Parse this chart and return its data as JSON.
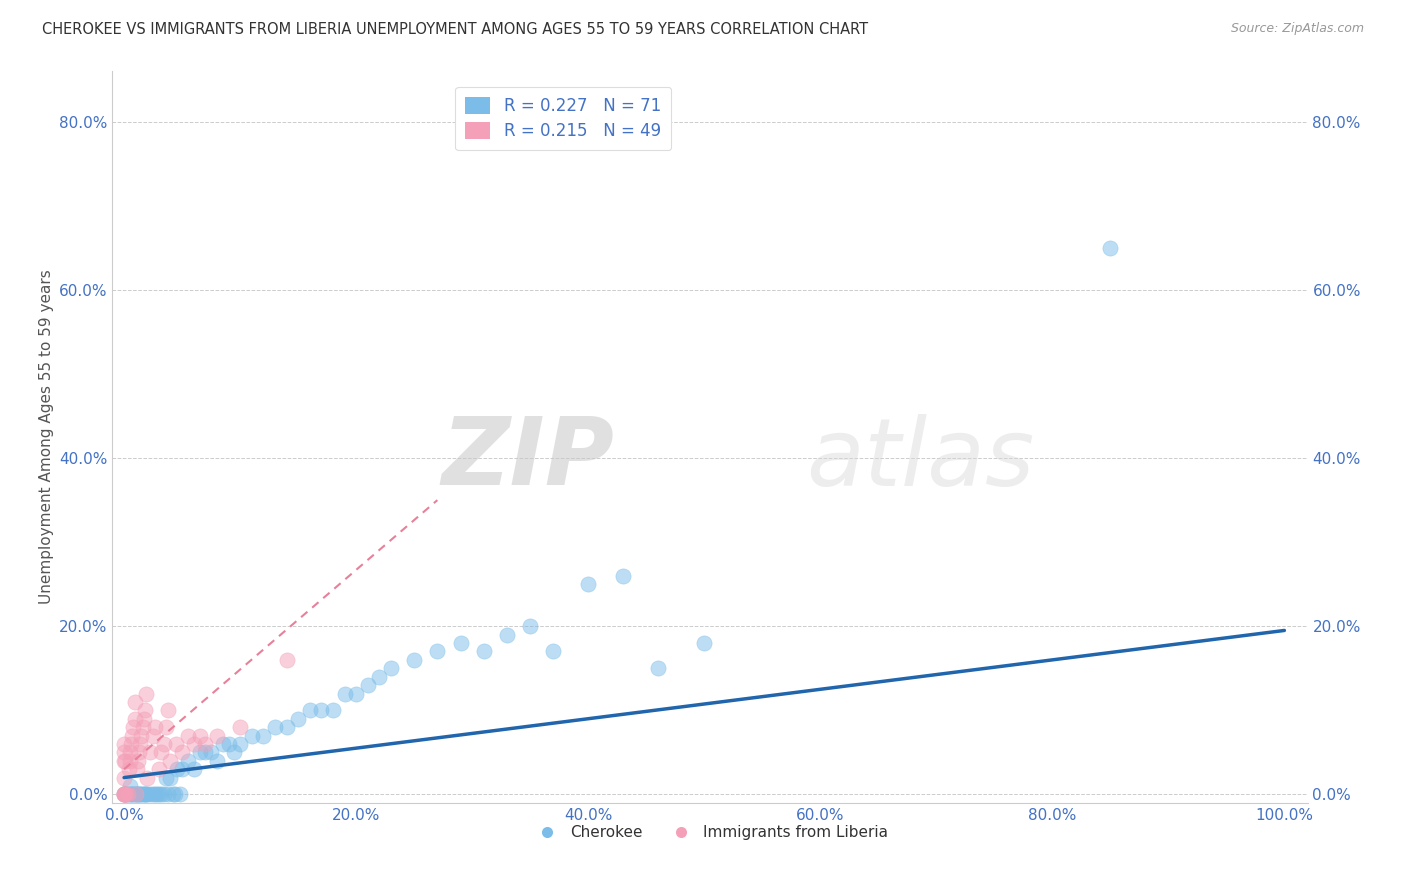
{
  "title": "CHEROKEE VS IMMIGRANTS FROM LIBERIA UNEMPLOYMENT AMONG AGES 55 TO 59 YEARS CORRELATION CHART",
  "source": "Source: ZipAtlas.com",
  "ylabel": "Unemployment Among Ages 55 to 59 years",
  "xlabel": "",
  "xlim": [
    -0.01,
    1.02
  ],
  "ylim": [
    -0.01,
    0.86
  ],
  "xticks": [
    0.0,
    0.2,
    0.4,
    0.6,
    0.8,
    1.0
  ],
  "xticklabels": [
    "0.0%",
    "20.0%",
    "40.0%",
    "60.0%",
    "80.0%",
    "100.0%"
  ],
  "yticks": [
    0.0,
    0.2,
    0.4,
    0.6,
    0.8
  ],
  "yticklabels": [
    "0.0%",
    "20.0%",
    "40.0%",
    "60.0%",
    "80.0%"
  ],
  "cherokee_color": "#7bbde8",
  "liberia_color": "#f4a0b8",
  "trendline_cherokee_color": "#2166ac",
  "trendline_liberia_color": "#e8809a",
  "watermark_zip": "ZIP",
  "watermark_atlas": "atlas",
  "legend_R_cherokee": "0.227",
  "legend_N_cherokee": "71",
  "legend_R_liberia": "0.215",
  "legend_N_liberia": "49",
  "cherokee_x": [
    0.0,
    0.001,
    0.002,
    0.003,
    0.005,
    0.005,
    0.006,
    0.007,
    0.008,
    0.009,
    0.01,
    0.011,
    0.012,
    0.013,
    0.014,
    0.015,
    0.016,
    0.017,
    0.018,
    0.019,
    0.02,
    0.022,
    0.025,
    0.027,
    0.028,
    0.03,
    0.032,
    0.034,
    0.036,
    0.038,
    0.04,
    0.042,
    0.044,
    0.046,
    0.048,
    0.05,
    0.055,
    0.06,
    0.065,
    0.07,
    0.075,
    0.08,
    0.085,
    0.09,
    0.095,
    0.1,
    0.11,
    0.12,
    0.13,
    0.14,
    0.15,
    0.16,
    0.17,
    0.18,
    0.19,
    0.2,
    0.21,
    0.22,
    0.23,
    0.25,
    0.27,
    0.29,
    0.31,
    0.33,
    0.35,
    0.37,
    0.4,
    0.43,
    0.46,
    0.5,
    0.85
  ],
  "cherokee_y": [
    0.0,
    0.0,
    0.0,
    0.0,
    0.0,
    0.01,
    0.0,
    0.0,
    0.0,
    0.0,
    0.0,
    0.0,
    0.0,
    0.0,
    0.0,
    0.0,
    0.0,
    0.0,
    0.0,
    0.0,
    0.0,
    0.0,
    0.0,
    0.0,
    0.0,
    0.0,
    0.0,
    0.0,
    0.02,
    0.0,
    0.02,
    0.0,
    0.0,
    0.03,
    0.0,
    0.03,
    0.04,
    0.03,
    0.05,
    0.05,
    0.05,
    0.04,
    0.06,
    0.06,
    0.05,
    0.06,
    0.07,
    0.07,
    0.08,
    0.08,
    0.09,
    0.1,
    0.1,
    0.1,
    0.12,
    0.12,
    0.13,
    0.14,
    0.15,
    0.16,
    0.17,
    0.18,
    0.17,
    0.19,
    0.2,
    0.17,
    0.25,
    0.26,
    0.15,
    0.18,
    0.65
  ],
  "liberia_x": [
    0.0,
    0.0,
    0.0,
    0.0,
    0.0,
    0.0,
    0.0,
    0.0,
    0.001,
    0.001,
    0.002,
    0.003,
    0.004,
    0.005,
    0.005,
    0.006,
    0.007,
    0.008,
    0.009,
    0.009,
    0.01,
    0.011,
    0.012,
    0.013,
    0.014,
    0.015,
    0.016,
    0.017,
    0.018,
    0.019,
    0.02,
    0.022,
    0.025,
    0.027,
    0.03,
    0.032,
    0.034,
    0.036,
    0.038,
    0.04,
    0.045,
    0.05,
    0.055,
    0.06,
    0.065,
    0.07,
    0.08,
    0.1,
    0.14
  ],
  "liberia_y": [
    0.0,
    0.0,
    0.0,
    0.0,
    0.02,
    0.04,
    0.05,
    0.06,
    0.0,
    0.04,
    0.0,
    0.0,
    0.03,
    0.04,
    0.05,
    0.06,
    0.07,
    0.08,
    0.09,
    0.11,
    0.0,
    0.03,
    0.04,
    0.05,
    0.06,
    0.07,
    0.08,
    0.09,
    0.1,
    0.12,
    0.02,
    0.05,
    0.07,
    0.08,
    0.03,
    0.05,
    0.06,
    0.08,
    0.1,
    0.04,
    0.06,
    0.05,
    0.07,
    0.06,
    0.07,
    0.06,
    0.07,
    0.08,
    0.16
  ],
  "cherokee_trendline_x": [
    0.0,
    1.0
  ],
  "cherokee_trendline_y": [
    0.02,
    0.195
  ],
  "liberia_trendline_x": [
    0.0,
    0.27
  ],
  "liberia_trendline_y": [
    0.03,
    0.35
  ]
}
